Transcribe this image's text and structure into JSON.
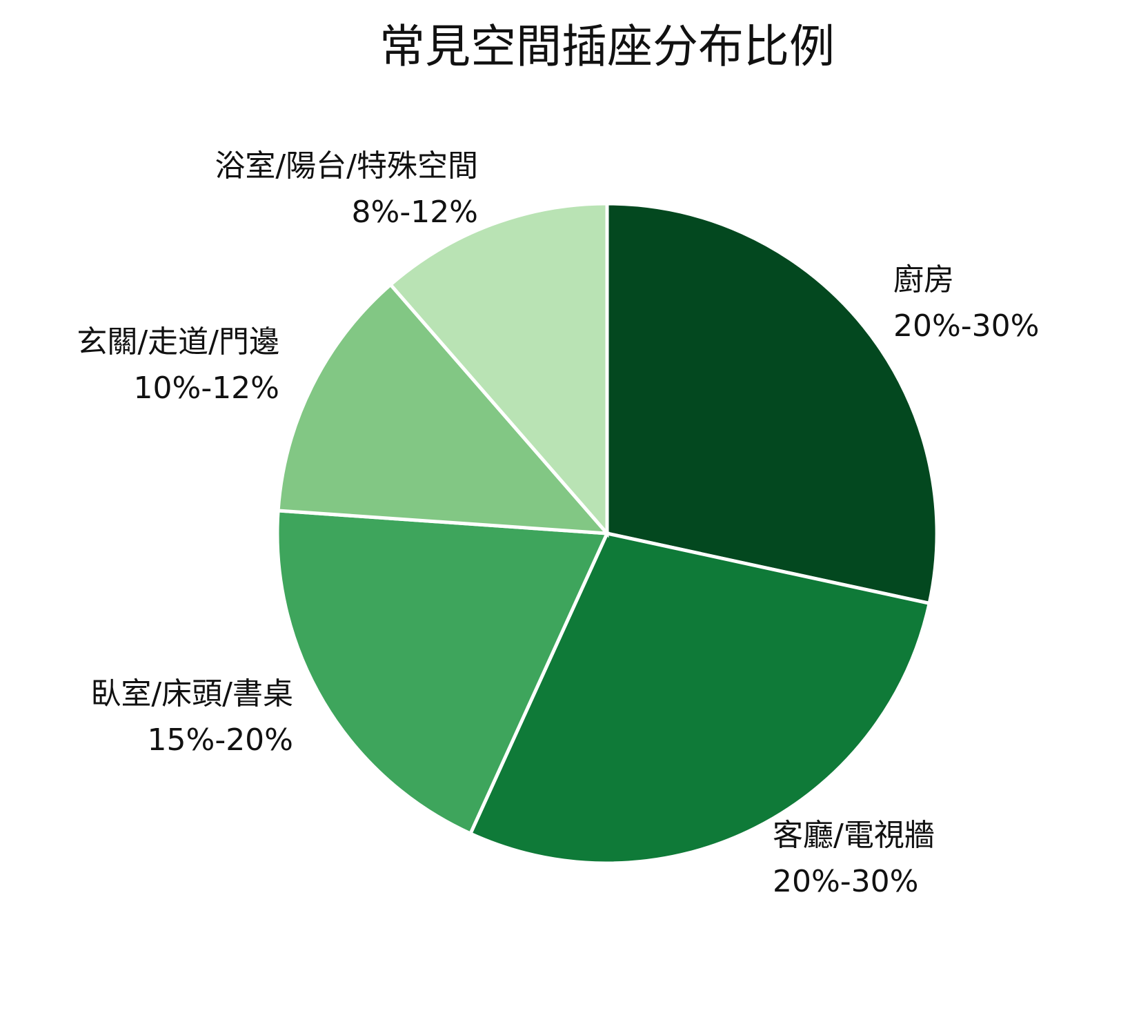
{
  "chart_data": {
    "type": "pie",
    "title": "常見空間插座分布比例",
    "categories": [
      "廚房",
      "客廳/電視牆",
      "臥室/床頭/書桌",
      "玄關/走道/門邊",
      "浴室/陽台/特殊空間"
    ],
    "ranges": [
      "20%-30%",
      "20%-30%",
      "15%-20%",
      "10%-12%",
      "8%-12%"
    ],
    "values": [
      28.4,
      28.4,
      19.3,
      12.5,
      11.4
    ],
    "colors": [
      "#03481f",
      "#0f7a38",
      "#3ea55c",
      "#82c784",
      "#b9e3b4"
    ],
    "start_angle": 90,
    "direction": "clockwise"
  }
}
